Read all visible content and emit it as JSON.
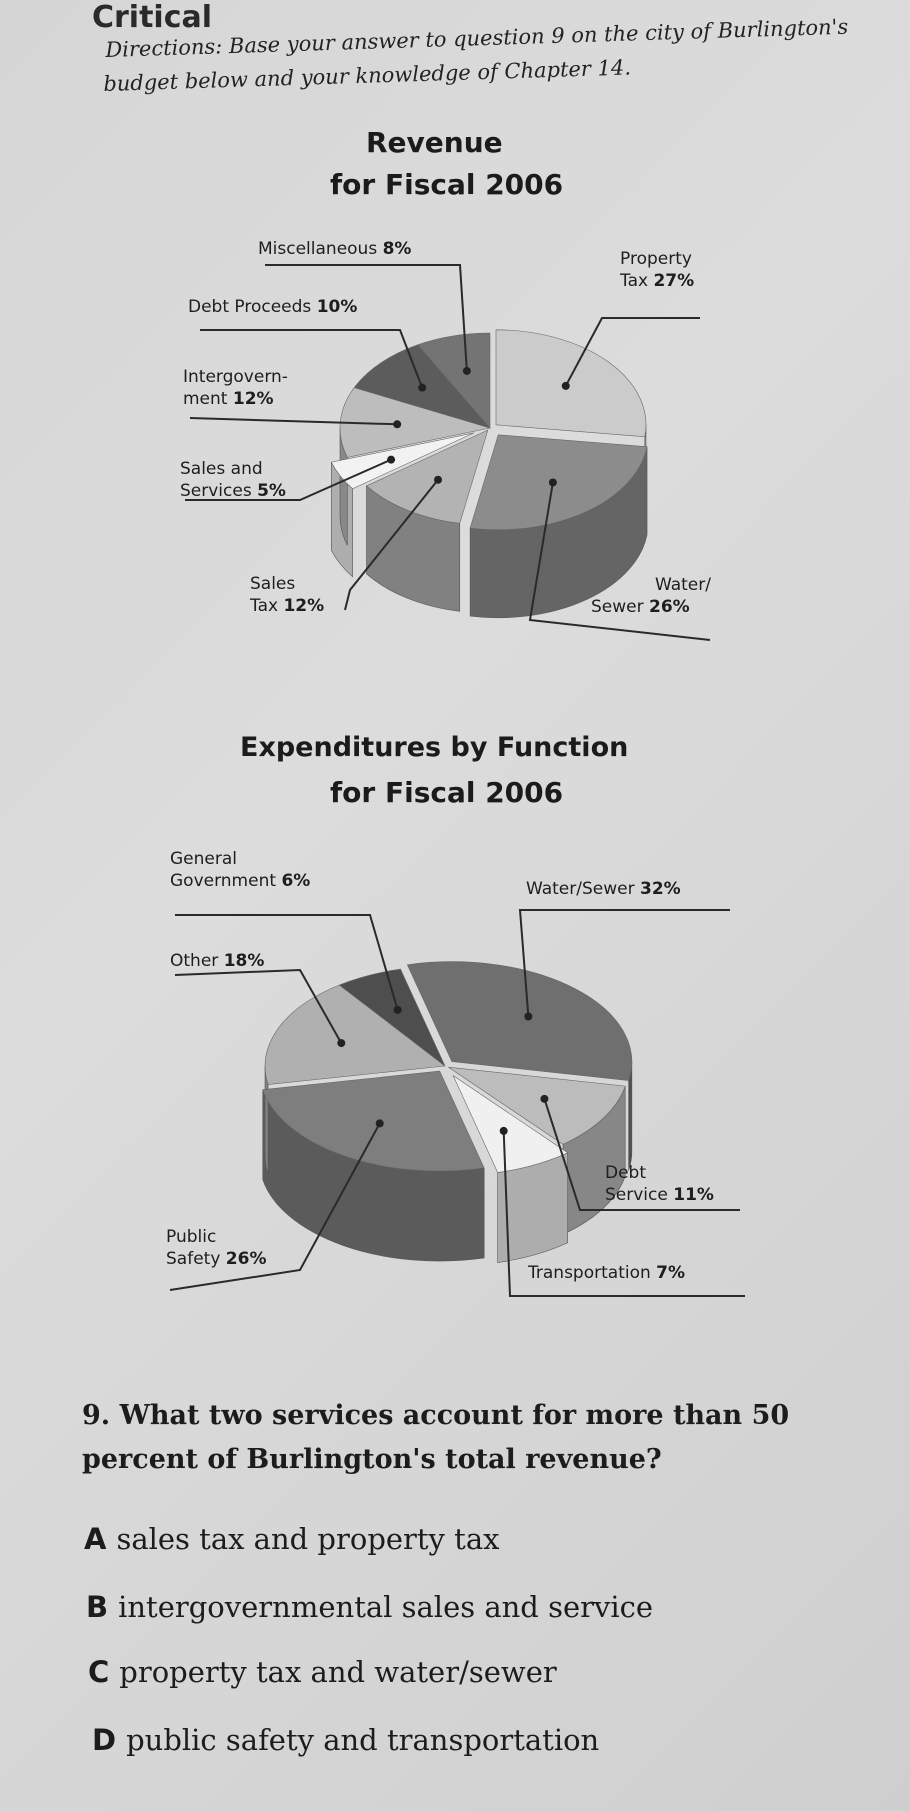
{
  "header": {
    "title": "Critical",
    "directions_line1": "Directions: Base your answer to question 9 on the city of Burlington's",
    "directions_line2": "budget below and your knowledge of Chapter 14."
  },
  "chart_data": [
    {
      "type": "pie",
      "title": "Revenue",
      "subtitle": "for Fiscal 2006",
      "slices": [
        {
          "label": "Property Tax",
          "line1": "Property",
          "line2": "Tax",
          "value": 27,
          "pct_text": "27%",
          "color": "#cbcbcb"
        },
        {
          "label": "Water/Sewer",
          "line1": "Water/",
          "line2": "Sewer",
          "value": 26,
          "pct_text": "26%",
          "color": "#8c8c8c"
        },
        {
          "label": "Sales Tax",
          "line1": "Sales",
          "line2": "Tax",
          "value": 12,
          "pct_text": "12%",
          "color": "#b3b3b3"
        },
        {
          "label": "Sales and Services",
          "line1": "Sales and",
          "line2": "Services",
          "value": 5,
          "pct_text": "5%",
          "color": "#f2f2f2"
        },
        {
          "label": "Intergovernment",
          "line1": "Intergovern-",
          "line2": "ment",
          "value": 12,
          "pct_text": "12%",
          "color": "#bdbdbd"
        },
        {
          "label": "Debt Proceeds",
          "line1": "Debt Proceeds",
          "line2": "",
          "value": 10,
          "pct_text": "10%",
          "color": "#5c5c5c"
        },
        {
          "label": "Miscellaneous",
          "line1": "Miscellaneous",
          "line2": "",
          "value": 8,
          "pct_text": "8%",
          "color": "#747474"
        }
      ]
    },
    {
      "type": "pie",
      "title": "Expenditures by Function",
      "subtitle": "for Fiscal 2006",
      "slices": [
        {
          "label": "Water/Sewer",
          "line1": "Water/Sewer",
          "line2": "",
          "value": 32,
          "pct_text": "32%",
          "color": "#6f6f6f"
        },
        {
          "label": "Debt Service",
          "line1": "Debt",
          "line2": "Service",
          "value": 11,
          "pct_text": "11%",
          "color": "#bcbcbc"
        },
        {
          "label": "Transportation",
          "line1": "Transportation",
          "line2": "",
          "value": 7,
          "pct_text": "7%",
          "color": "#f0f0f0"
        },
        {
          "label": "Public Safety",
          "line1": "Public",
          "line2": "Safety",
          "value": 26,
          "pct_text": "26%",
          "color": "#7e7e7e"
        },
        {
          "label": "Other",
          "line1": "Other",
          "line2": "",
          "value": 18,
          "pct_text": "18%",
          "color": "#b0b0b0"
        },
        {
          "label": "General Government",
          "line1": "General",
          "line2": "Government",
          "value": 6,
          "pct_text": "6%",
          "color": "#4e4e4e"
        }
      ]
    }
  ],
  "question": {
    "text": "9. What two services account for more than 50 percent of Burlington's total revenue?",
    "choices": [
      {
        "letter": "A",
        "text": "sales tax and property tax"
      },
      {
        "letter": "B",
        "text": "intergovernmental sales and service"
      },
      {
        "letter": "C",
        "text": "property tax and water/sewer"
      },
      {
        "letter": "D",
        "text": "public safety and transportation"
      }
    ]
  }
}
